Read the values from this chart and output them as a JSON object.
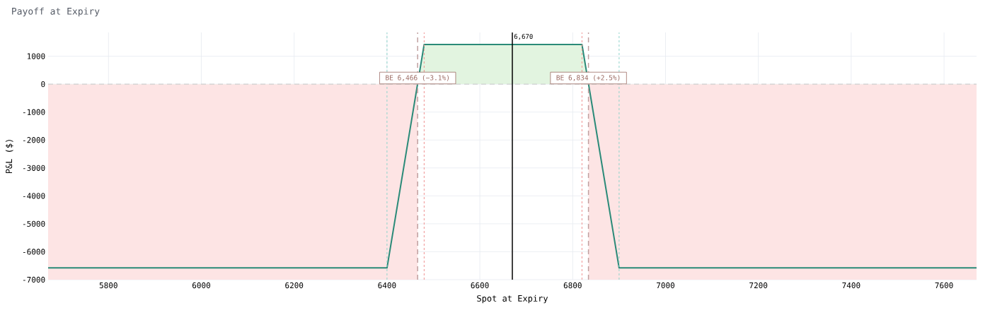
{
  "chart_data": {
    "type": "area",
    "title": "Payoff at Expiry",
    "xlabel": "Spot at Expiry",
    "ylabel": "P&L ($)",
    "series": [
      {
        "color": "#2a8a78",
        "x": [
          5670,
          6400,
          6480,
          6820,
          6900,
          7670
        ],
        "values": [
          -6580,
          -6580,
          1420,
          1420,
          -6580,
          -6580
        ]
      }
    ],
    "xlim": [
      5670,
      7670
    ],
    "ylim": [
      -7000,
      1850
    ],
    "xticks": [
      5800,
      6000,
      6200,
      6400,
      6600,
      6800,
      7000,
      7200,
      7400,
      7600
    ],
    "yticks": [
      -7000,
      -6000,
      -5000,
      -4000,
      -3000,
      -2000,
      -1000,
      0,
      1000
    ],
    "grid": true,
    "bands": [
      {
        "axis": "x",
        "from": 5670,
        "to": 6466,
        "color": "#fde4e4"
      },
      {
        "axis": "x",
        "from": 6834,
        "to": 7670,
        "color": "#fde4e4"
      }
    ],
    "ref_lines": [
      {
        "axis": "y",
        "value": 0,
        "color": "#c8c8c8",
        "line_style": "dashed"
      },
      {
        "axis": "x",
        "value": 6400,
        "color": "#8fd3cc",
        "line_style": "dotted"
      },
      {
        "axis": "x",
        "value": 6900,
        "color": "#8fd3cc",
        "line_style": "dotted"
      },
      {
        "axis": "x",
        "value": 6480,
        "color": "#f09090",
        "line_style": "dotted"
      },
      {
        "axis": "x",
        "value": 6820,
        "color": "#f09090",
        "line_style": "dotted"
      },
      {
        "axis": "x",
        "value": 6466,
        "color": "#c0a0a0",
        "line_style": "dashed",
        "label": "BE 6,466 (−3.1%)"
      },
      {
        "axis": "x",
        "value": 6834,
        "color": "#c0a0a0",
        "line_style": "dashed",
        "label": "BE 6,834 (+2.5%)"
      },
      {
        "axis": "x",
        "value": 6670,
        "color": "#000000",
        "line_style": "solid",
        "label": "6,670"
      }
    ]
  }
}
